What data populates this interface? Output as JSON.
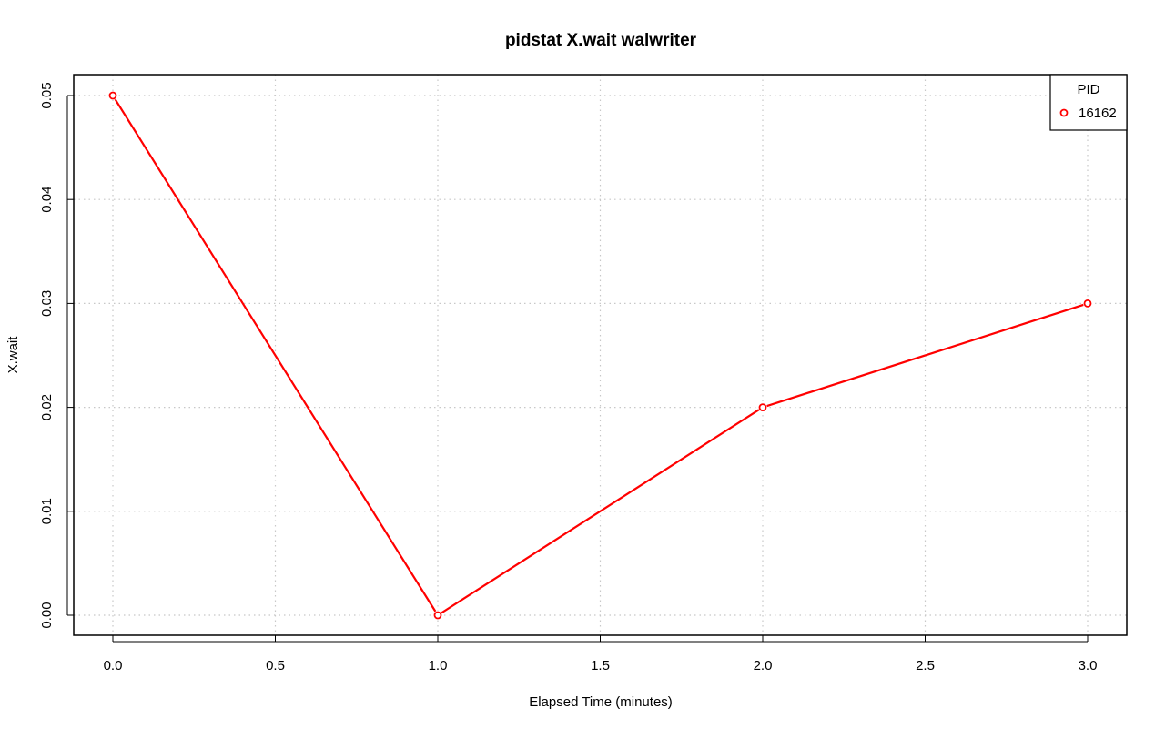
{
  "chart_data": {
    "type": "line",
    "title": "pidstat X.wait walwriter",
    "xlabel": "Elapsed Time (minutes)",
    "ylabel": "X.wait",
    "xlim": [
      0,
      3
    ],
    "ylim": [
      0,
      0.05
    ],
    "x_ticks": [
      "0.0",
      "0.5",
      "1.0",
      "1.5",
      "2.0",
      "2.5",
      "3.0"
    ],
    "y_ticks": [
      "0.00",
      "0.01",
      "0.02",
      "0.03",
      "0.04",
      "0.05"
    ],
    "grid": true,
    "legend": {
      "title": "PID",
      "placement": "top-right"
    },
    "series": [
      {
        "name": "16162",
        "color": "#ff0000",
        "marker": "open-circle",
        "x": [
          0,
          1,
          2,
          3
        ],
        "y": [
          0.05,
          0.0,
          0.02,
          0.03
        ]
      }
    ]
  }
}
